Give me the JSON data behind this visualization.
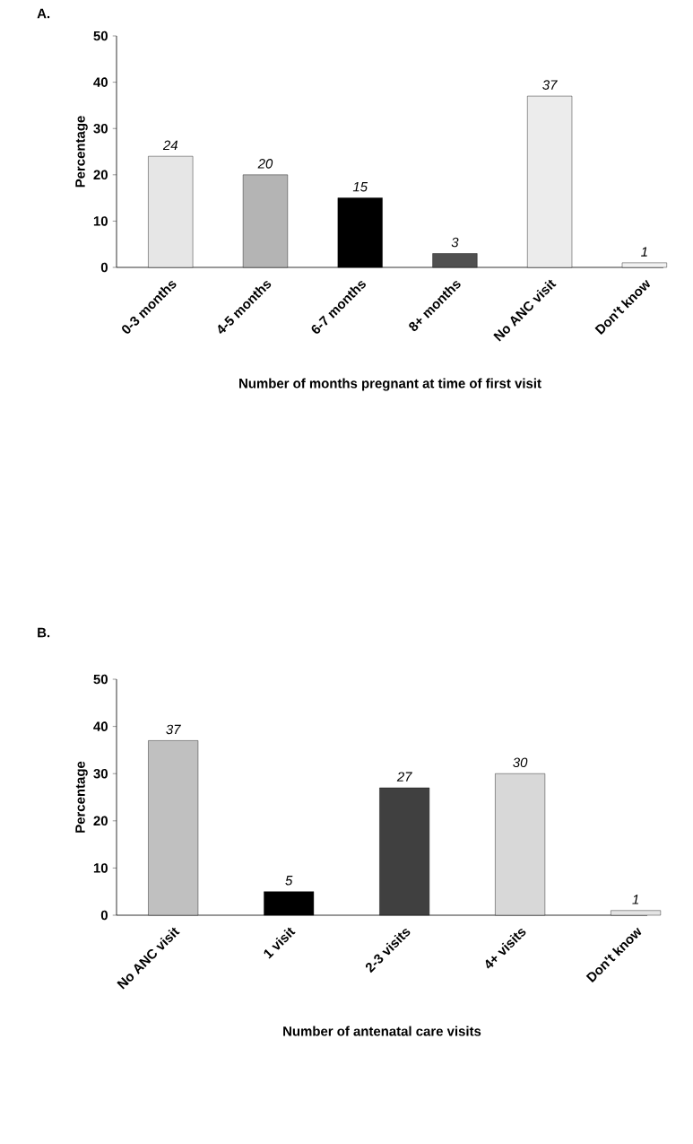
{
  "chart_data": [
    {
      "type": "bar",
      "title": "A.",
      "xlabel": "Number of months pregnant at time of first visit",
      "ylabel": "Percentage",
      "categories": [
        "0-3 months",
        "4-5 months",
        "6-7 months",
        "8+ months",
        "No ANC visit",
        "Don't know"
      ],
      "values": [
        24,
        20,
        15,
        3,
        37,
        1
      ],
      "colors": [
        "#e6e6e6",
        "#b4b4b4",
        "#000000",
        "#505050",
        "#ececec",
        "#f2f2f2"
      ],
      "ylim": [
        0,
        50
      ],
      "yticks": [
        0,
        10,
        20,
        30,
        40,
        50
      ],
      "data_labels": true
    },
    {
      "type": "bar",
      "title": "B.",
      "xlabel": "Number of antenatal care visits",
      "ylabel": "Percentage",
      "categories": [
        "No ANC visit",
        "1 visit",
        "2-3 visits",
        "4+ visits",
        "Don't know"
      ],
      "values": [
        37,
        5,
        27,
        30,
        1
      ],
      "colors": [
        "#c0c0c0",
        "#000000",
        "#404040",
        "#d8d8d8",
        "#e4e4e4"
      ],
      "ylim": [
        0,
        50
      ],
      "yticks": [
        0,
        10,
        20,
        30,
        40,
        50
      ],
      "data_labels": true
    }
  ]
}
